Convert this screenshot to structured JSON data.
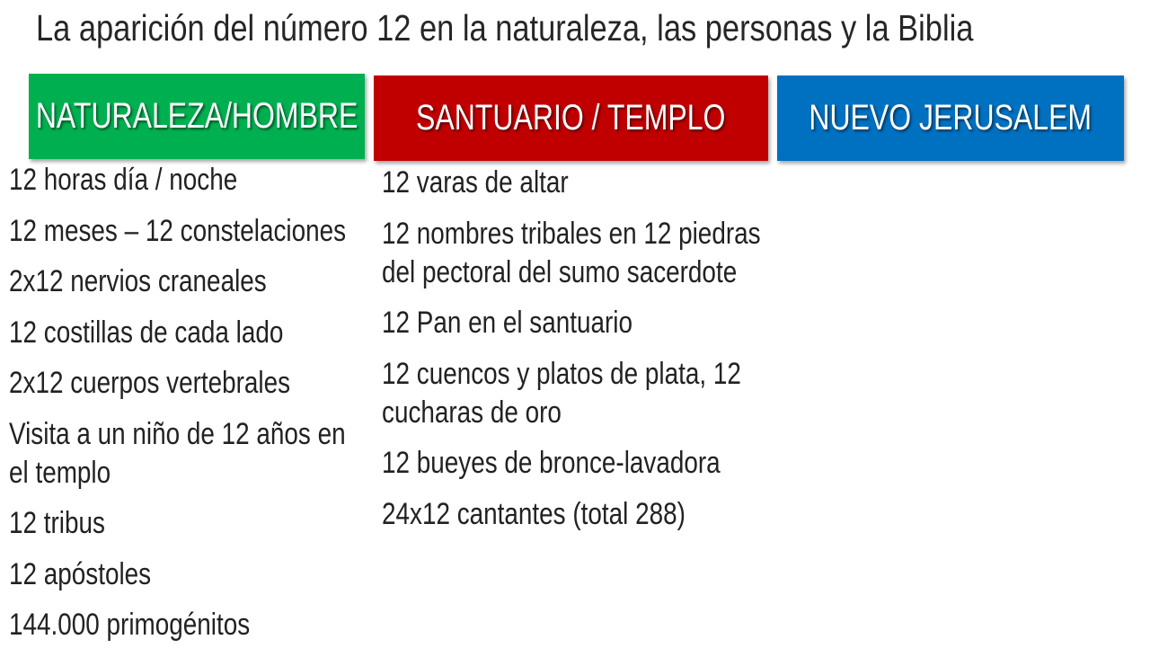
{
  "title": "La aparición del número 12 en la naturaleza, las personas y la Biblia",
  "colors": {
    "nature": "#00B050",
    "sanctuary": "#C00000",
    "jerusalem": "#0070C0"
  },
  "columns": [
    {
      "header": "NATURALEZA/HOMBRE",
      "items": [
        "12 horas día / noche",
        "12 meses – 12 constelaciones",
        "2x12 nervios craneales",
        "12 costillas de cada lado",
        "2x12 cuerpos vertebrales",
        "Visita a un niño de 12 años en el templo",
        "12 tribus",
        "12 apóstoles",
        "144.000 primogénitos"
      ]
    },
    {
      "header": "SANTUARIO / TEMPLO",
      "items": [
        "12 varas de altar",
        "12 nombres tribales en 12 piedras del pectoral del sumo sacerdote",
        "12 Pan en el santuario",
        "12 cuencos y platos de plata, 12 cucharas de oro",
        "12 bueyes de bronce-lavadora",
        "24x12 cantantes (total 288)"
      ]
    },
    {
      "header": "NUEVO JERUSALEM",
      "items": []
    }
  ]
}
